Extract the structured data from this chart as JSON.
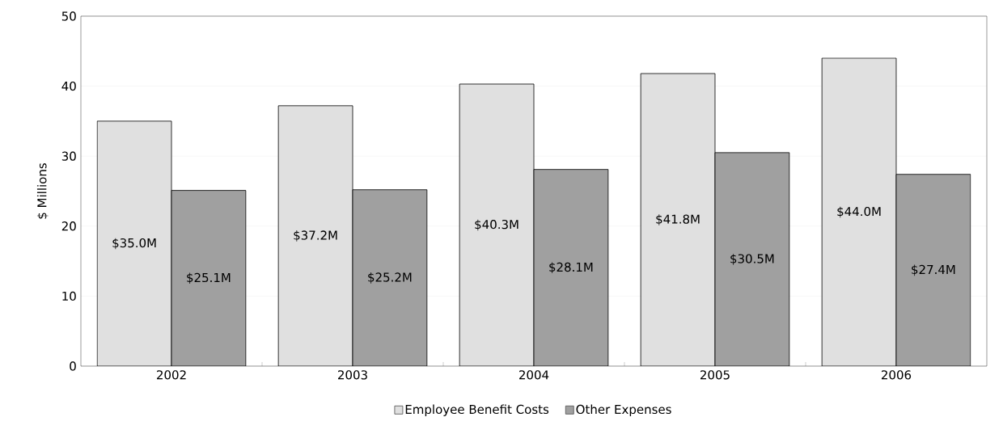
{
  "chart_data": {
    "type": "bar",
    "ylabel": "$ Millions",
    "categories": [
      "2002",
      "2003",
      "2004",
      "2005",
      "2006"
    ],
    "series": [
      {
        "name": "Employee Benefit Costs",
        "color": "#e0e0e0",
        "values": [
          35.0,
          37.2,
          40.3,
          41.8,
          44.0
        ],
        "value_labels": [
          "$35.0M",
          "$37.2M",
          "$40.3M",
          "$41.8M",
          "$44.0M"
        ]
      },
      {
        "name": "Other Expenses",
        "color": "#a0a0a0",
        "values": [
          25.1,
          25.2,
          28.1,
          30.5,
          27.4
        ],
        "value_labels": [
          "$25.1M",
          "$25.2M",
          "$28.1M",
          "$30.5M",
          "$27.4M"
        ]
      }
    ],
    "ylim": [
      0,
      50
    ],
    "yticks": [
      0,
      10,
      20,
      30,
      40,
      50
    ],
    "grid": "y",
    "legend": "bottom"
  }
}
